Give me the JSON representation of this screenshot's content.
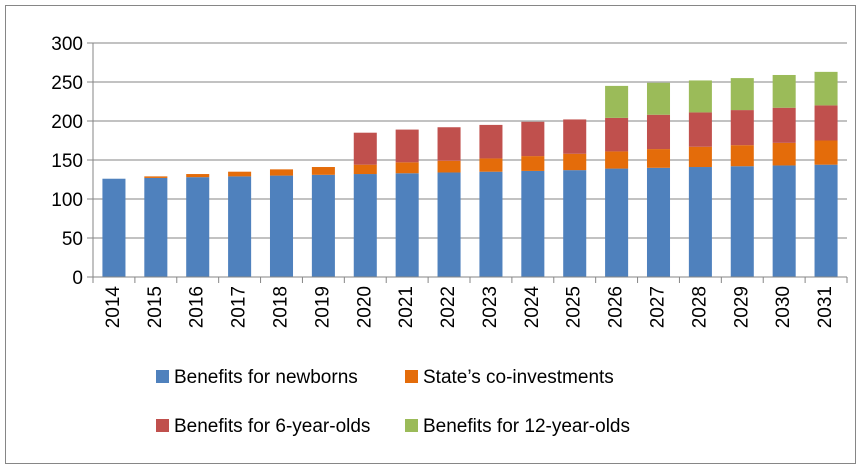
{
  "chart_data": {
    "type": "bar",
    "stacked": true,
    "categories": [
      "2014",
      "2015",
      "2016",
      "2017",
      "2018",
      "2019",
      "2020",
      "2021",
      "2022",
      "2023",
      "2024",
      "2025",
      "2026",
      "2027",
      "2028",
      "2029",
      "2030",
      "2031"
    ],
    "series": [
      {
        "name": "Benefits for newborns",
        "color": "#4f81bd",
        "values": [
          126,
          127,
          128,
          129,
          130,
          131,
          132,
          133,
          134,
          135,
          136,
          137,
          139,
          140,
          141,
          142,
          143,
          144
        ]
      },
      {
        "name": "State’s co-investments",
        "color": "#e46c0a",
        "values": [
          0,
          2,
          4,
          6,
          8,
          10,
          12,
          14,
          15,
          17,
          19,
          21,
          22,
          24,
          26,
          27,
          29,
          31
        ]
      },
      {
        "name": "Benefits for 6-year-olds",
        "color": "#c0504d",
        "values": [
          0,
          0,
          0,
          0,
          0,
          0,
          41,
          42,
          43,
          43,
          44,
          44,
          43,
          44,
          44,
          45,
          45,
          45
        ]
      },
      {
        "name": "Benefits for 12-year-olds",
        "color": "#9bbb59",
        "values": [
          0,
          0,
          0,
          0,
          0,
          0,
          0,
          0,
          0,
          0,
          0,
          0,
          41,
          41,
          41,
          41,
          42,
          43
        ]
      }
    ],
    "ylim": [
      0,
      300
    ],
    "yticks": [
      0,
      50,
      100,
      150,
      200,
      250,
      300
    ],
    "grid": true,
    "legend": "bottom",
    "title": "",
    "xlabel": "",
    "ylabel": ""
  }
}
